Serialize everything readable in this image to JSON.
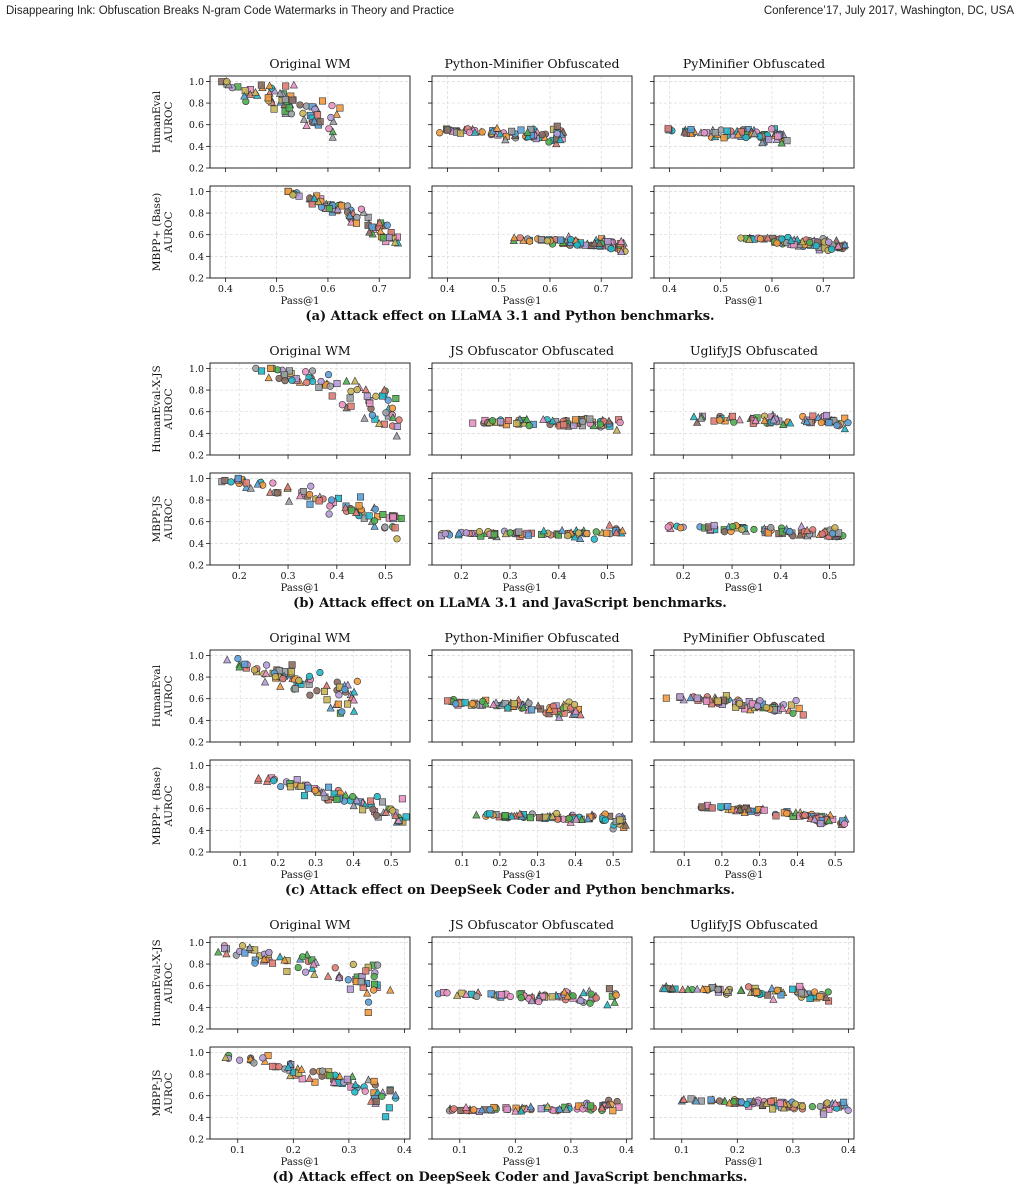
{
  "header": {
    "left": "Disappearing Ink: Obfuscation Breaks N-gram Code Watermarks in Theory and Practice",
    "right": "Conference’17, July 2017, Washington, DC, USA"
  },
  "chart_data": [
    {
      "type": "scatter",
      "caption": "(a) Attack effect on LLaMA 3.1 and Python benchmarks.",
      "columns": [
        "Original WM",
        "Python-Minifier Obfuscated",
        "PyMinifier Obfuscated"
      ],
      "row_labels": [
        "HumanEval\nAUROC",
        "MBPP+ (Base)\nAUROC"
      ],
      "xlabel": "Pass@1",
      "xlim": [
        0.37,
        0.76
      ],
      "xticks": [
        0.4,
        0.5,
        0.6,
        0.7
      ],
      "ylim": [
        0.2,
        1.05
      ],
      "yticks": [
        0.2,
        0.4,
        0.6,
        0.8,
        1.0
      ],
      "grid": true,
      "panels": [
        [
          {
            "n": 70,
            "x": [
              0.39,
              0.62
            ],
            "y": [
              0.99,
              0.56
            ],
            "noise": 0.09
          },
          {
            "n": 75,
            "x": [
              0.52,
              0.74
            ],
            "y": [
              0.99,
              0.55
            ],
            "noise": 0.04
          }
        ],
        [
          {
            "n": 70,
            "x": [
              0.39,
              0.63
            ],
            "y": [
              0.55,
              0.49
            ],
            "noise": 0.025
          },
          {
            "n": 75,
            "x": [
              0.52,
              0.74
            ],
            "y": [
              0.56,
              0.49
            ],
            "noise": 0.02
          }
        ],
        [
          {
            "n": 70,
            "x": [
              0.39,
              0.63
            ],
            "y": [
              0.54,
              0.48
            ],
            "noise": 0.025
          },
          {
            "n": 75,
            "x": [
              0.52,
              0.74
            ],
            "y": [
              0.57,
              0.49
            ],
            "noise": 0.02
          }
        ]
      ]
    },
    {
      "type": "scatter",
      "caption": "(b) Attack effect on LLaMA 3.1 and JavaScript benchmarks.",
      "columns": [
        "Original WM",
        "JS Obfuscator Obfuscated",
        "UglifyJS Obfuscated"
      ],
      "row_labels": [
        "HumanEval-X-JS\nAUROC",
        "MBPP-JS\nAUROC"
      ],
      "xlabel": "Pass@1",
      "xlim": [
        0.14,
        0.55
      ],
      "xticks": [
        0.2,
        0.3,
        0.4,
        0.5
      ],
      "ylim": [
        0.2,
        1.05
      ],
      "yticks": [
        0.2,
        0.4,
        0.6,
        0.8,
        1.0
      ],
      "grid": true,
      "panels": [
        [
          {
            "n": 70,
            "x": [
              0.22,
              0.53
            ],
            "y": [
              0.99,
              0.6
            ],
            "noise": 0.09
          },
          {
            "n": 75,
            "x": [
              0.16,
              0.53
            ],
            "y": [
              0.99,
              0.58
            ],
            "noise": 0.05
          }
        ],
        [
          {
            "n": 70,
            "x": [
              0.22,
              0.53
            ],
            "y": [
              0.5,
              0.51
            ],
            "noise": 0.025
          },
          {
            "n": 75,
            "x": [
              0.16,
              0.53
            ],
            "y": [
              0.49,
              0.49
            ],
            "noise": 0.02
          }
        ],
        [
          {
            "n": 70,
            "x": [
              0.22,
              0.53
            ],
            "y": [
              0.54,
              0.5
            ],
            "noise": 0.025
          },
          {
            "n": 75,
            "x": [
              0.16,
              0.53
            ],
            "y": [
              0.55,
              0.49
            ],
            "noise": 0.02
          }
        ]
      ]
    },
    {
      "type": "scatter",
      "caption": "(c) Attack effect on DeepSeek Coder and Python benchmarks.",
      "columns": [
        "Original WM",
        "Python-Minifier Obfuscated",
        "PyMinifier Obfuscated"
      ],
      "row_labels": [
        "HumanEval\nAUROC",
        "MBPP+ (Base)\nAUROC"
      ],
      "xlabel": "Pass@1",
      "xlim": [
        0.02,
        0.55
      ],
      "xticks": [
        0.1,
        0.2,
        0.3,
        0.4,
        0.5
      ],
      "ylim": [
        0.2,
        1.05
      ],
      "yticks": [
        0.2,
        0.4,
        0.6,
        0.8,
        1.0
      ],
      "grid": true,
      "panels": [
        [
          {
            "n": 70,
            "x": [
              0.04,
              0.41
            ],
            "y": [
              0.95,
              0.57
            ],
            "noise": 0.06
          },
          {
            "n": 75,
            "x": [
              0.14,
              0.53
            ],
            "y": [
              0.88,
              0.52
            ],
            "noise": 0.04
          }
        ],
        [
          {
            "n": 70,
            "x": [
              0.04,
              0.41
            ],
            "y": [
              0.58,
              0.48
            ],
            "noise": 0.025
          },
          {
            "n": 75,
            "x": [
              0.14,
              0.53
            ],
            "y": [
              0.54,
              0.48
            ],
            "noise": 0.02
          }
        ],
        [
          {
            "n": 70,
            "x": [
              0.04,
              0.41
            ],
            "y": [
              0.62,
              0.48
            ],
            "noise": 0.03
          },
          {
            "n": 75,
            "x": [
              0.14,
              0.53
            ],
            "y": [
              0.62,
              0.48
            ],
            "noise": 0.02
          }
        ]
      ]
    },
    {
      "type": "scatter",
      "caption": "(d) Attack effect on DeepSeek Coder and JavaScript benchmarks.",
      "columns": [
        "Original WM",
        "JS Obfuscator Obfuscated",
        "UglifyJS Obfuscated"
      ],
      "row_labels": [
        "HumanEval-X-JS\nAUROC",
        "MBPP-JS\nAUROC"
      ],
      "xlabel": "Pass@1",
      "xlim": [
        0.05,
        0.41
      ],
      "xticks": [
        0.1,
        0.2,
        0.3,
        0.4
      ],
      "ylim": [
        0.2,
        1.05
      ],
      "yticks": [
        0.2,
        0.4,
        0.6,
        0.8,
        1.0
      ],
      "grid": true,
      "panels": [
        [
          {
            "n": 70,
            "x": [
              0.06,
              0.37
            ],
            "y": [
              0.93,
              0.57
            ],
            "noise": 0.06
          },
          {
            "n": 75,
            "x": [
              0.07,
              0.39
            ],
            "y": [
              0.97,
              0.55
            ],
            "noise": 0.05
          }
        ],
        [
          {
            "n": 70,
            "x": [
              0.06,
              0.38
            ],
            "y": [
              0.52,
              0.49
            ],
            "noise": 0.025
          },
          {
            "n": 75,
            "x": [
              0.07,
              0.39
            ],
            "y": [
              0.47,
              0.5
            ],
            "noise": 0.02
          }
        ],
        [
          {
            "n": 70,
            "x": [
              0.06,
              0.37
            ],
            "y": [
              0.58,
              0.5
            ],
            "noise": 0.025
          },
          {
            "n": 75,
            "x": [
              0.07,
              0.39
            ],
            "y": [
              0.56,
              0.49
            ],
            "noise": 0.02
          }
        ]
      ]
    }
  ],
  "palette": [
    "#e07b73",
    "#5aa0d8",
    "#f29a3d",
    "#4fae4f",
    "#22b8c9",
    "#b59bd6",
    "#c9b458",
    "#e991c3",
    "#8c6d62",
    "#9aa0a6"
  ],
  "marker_stroke": "#333333"
}
